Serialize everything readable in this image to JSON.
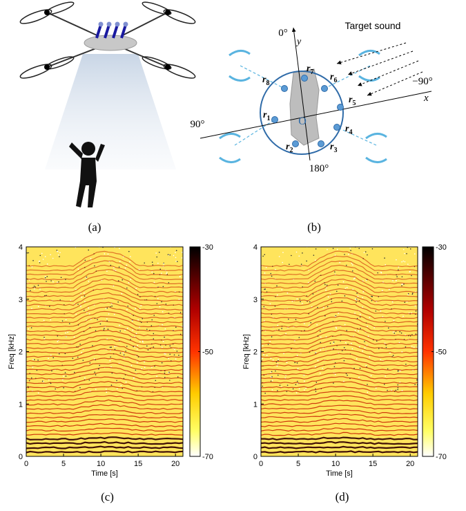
{
  "panel_a": {
    "caption": "(a)"
  },
  "panel_b": {
    "caption": "(b)",
    "target_label": "Target sound",
    "angles": [
      "0°",
      "−90°",
      "90°",
      "180°"
    ],
    "origin": "O",
    "x_axis": "x",
    "y_axis": "y",
    "mics": [
      {
        "symbol": "r",
        "index": "1"
      },
      {
        "symbol": "r",
        "index": "2"
      },
      {
        "symbol": "r",
        "index": "3"
      },
      {
        "symbol": "r",
        "index": "4"
      },
      {
        "symbol": "r",
        "index": "5"
      },
      {
        "symbol": "r",
        "index": "6"
      },
      {
        "symbol": "r",
        "index": "7"
      },
      {
        "symbol": "r",
        "index": "8"
      }
    ]
  },
  "spectrograms": [
    {
      "caption": "(c)",
      "xlabel": "Time [s]",
      "ylabel": "Freq [kHz]",
      "xlim": [
        0,
        21
      ],
      "xticks": [
        0,
        5,
        10,
        15,
        20
      ],
      "ylim": [
        0,
        4
      ],
      "yticks": [
        0,
        1,
        2,
        3,
        4
      ],
      "colorbar": {
        "lim": [
          -70,
          -30
        ],
        "ticks": [
          -70,
          -50,
          -30
        ]
      }
    },
    {
      "caption": "(d)",
      "xlabel": "Time [s]",
      "ylabel": "Freq [kHz]",
      "xlim": [
        0,
        21
      ],
      "xticks": [
        0,
        5,
        10,
        15,
        20
      ],
      "ylim": [
        0,
        4
      ],
      "yticks": [
        0,
        1,
        2,
        3,
        4
      ],
      "colorbar": {
        "lim": [
          -70,
          -30
        ],
        "ticks": [
          -70,
          -50,
          -30
        ]
      }
    }
  ]
}
